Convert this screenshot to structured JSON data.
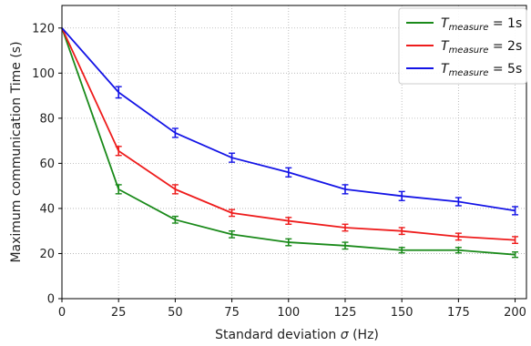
{
  "chart_data": {
    "type": "line",
    "xlabel_prefix": "Standard deviation ",
    "xlabel_symbol": "σ",
    "xlabel_unit": " (Hz)",
    "ylabel": "Maximum communication Time (s)",
    "xlim": [
      0,
      205
    ],
    "ylim": [
      0,
      130
    ],
    "x": [
      0,
      25,
      50,
      75,
      100,
      125,
      150,
      175,
      200
    ],
    "xticks": [
      "0",
      "25",
      "50",
      "75",
      "100",
      "125",
      "150",
      "175",
      "200"
    ],
    "yticks": [
      "0",
      "20",
      "40",
      "60",
      "80",
      "100",
      "120"
    ],
    "xtick_values": [
      0,
      25,
      50,
      75,
      100,
      125,
      150,
      175,
      200
    ],
    "ytick_values": [
      0,
      20,
      40,
      60,
      80,
      100,
      120
    ],
    "grid": true,
    "legend_position": "top-right",
    "series": [
      {
        "name_base": "T",
        "name_sub": "measure",
        "name_rest": " = 1s",
        "color": "#1a8a1a",
        "values": [
          120,
          48.5,
          35,
          28.5,
          25,
          23.5,
          21.5,
          21.5,
          19.5
        ],
        "errors": [
          0,
          2,
          1.5,
          1.5,
          1.5,
          1.5,
          1.2,
          1.2,
          1.2
        ]
      },
      {
        "name_base": "T",
        "name_sub": "measure",
        "name_rest": " = 2s",
        "color": "#ee1c1c",
        "values": [
          120,
          65.5,
          48.5,
          38,
          34.5,
          31.5,
          30,
          27.5,
          26
        ],
        "errors": [
          0,
          2,
          2,
          1.5,
          1.5,
          1.5,
          1.5,
          1.5,
          1.5
        ]
      },
      {
        "name_base": "T",
        "name_sub": "measure",
        "name_rest": " = 5s",
        "color": "#1414e6",
        "values": [
          120,
          91.5,
          73.5,
          62.5,
          56,
          48.5,
          45.5,
          43,
          39
        ],
        "errors": [
          0,
          2.5,
          2,
          2,
          2,
          2,
          2,
          1.8,
          1.8
        ]
      }
    ]
  }
}
